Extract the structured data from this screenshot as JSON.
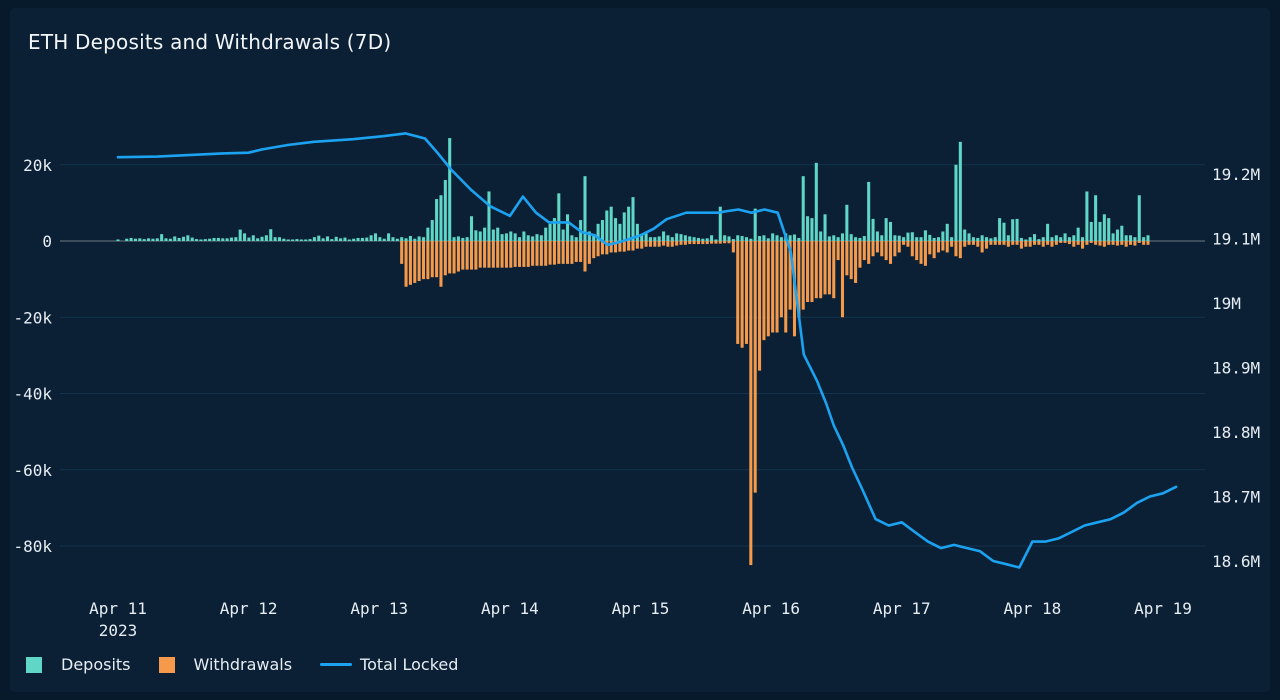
{
  "chart_data": {
    "type": "bar",
    "title": "ETH Deposits and Withdrawals (7D)",
    "x_tick_labels": [
      "Apr 11",
      "Apr 12",
      "Apr 13",
      "Apr 14",
      "Apr 15",
      "Apr 16",
      "Apr 17",
      "Apr 18",
      "Apr 19"
    ],
    "x_year_label": "2023",
    "y_left_ticks": [
      20000,
      0,
      -20000,
      -40000,
      -60000,
      -80000
    ],
    "y_left_tick_labels": [
      "20k",
      "0",
      "-20k",
      "-40k",
      "-60k",
      "-80k"
    ],
    "y_right_ticks": [
      19200000,
      19100000,
      19000000,
      18900000,
      18800000,
      18700000,
      18600000
    ],
    "y_right_tick_labels": [
      "19.2M",
      "19.1M",
      "19M",
      "18.9M",
      "18.8M",
      "18.7M",
      "18.6M"
    ],
    "ylim_left": [
      -88000,
      40000
    ],
    "ylim_right": [
      18590000,
      19290000
    ],
    "grid": true,
    "legend_position": "bottom-left",
    "colors": {
      "deposits": "#5fd6c6",
      "withdrawals": "#f49a4a",
      "total_locked": "#1ba3f2",
      "zero_line": "#6e7a86"
    },
    "series": [
      {
        "name": "Deposits",
        "axis": "left",
        "values": [
          400,
          0,
          600,
          800,
          600,
          700,
          500,
          700,
          600,
          700,
          1800,
          700,
          600,
          1200,
          800,
          1100,
          1500,
          900,
          500,
          400,
          500,
          600,
          800,
          800,
          700,
          700,
          900,
          1000,
          3000,
          2000,
          900,
          1500,
          700,
          1100,
          1500,
          3100,
          1000,
          1000,
          600,
          400,
          400,
          500,
          400,
          400,
          500,
          1000,
          1400,
          700,
          1200,
          500,
          1100,
          700,
          900,
          400,
          600,
          800,
          800,
          900,
          1500,
          2000,
          1000,
          600,
          2000,
          1000,
          600,
          1000,
          700,
          1300,
          600,
          1200,
          1000,
          3500,
          5500,
          11000,
          12000,
          16000,
          27000,
          1000,
          1200,
          800,
          1000,
          6500,
          2800,
          2500,
          3500,
          13000,
          3000,
          3500,
          1800,
          2000,
          2500,
          2000,
          1000,
          2500,
          1500,
          1200,
          1800,
          1500,
          3500,
          4500,
          6000,
          12500,
          3000,
          7000,
          1500,
          1000,
          5500,
          17000,
          2500,
          1500,
          4500,
          5500,
          8000,
          9000,
          6000,
          4500,
          7500,
          9000,
          11500,
          4500,
          1500,
          2000,
          1000,
          1000,
          1200,
          2500,
          1500,
          1000,
          2000,
          1800,
          1500,
          1200,
          1000,
          800,
          600,
          700,
          1500,
          400,
          9000,
          1500,
          1200,
          500,
          1500,
          1300,
          1000,
          600,
          8500,
          1300,
          1500,
          700,
          2000,
          1500,
          1000,
          2000,
          1500,
          1700,
          800,
          17000,
          6500,
          6000,
          20500,
          2500,
          7000,
          1200,
          1500,
          1000,
          2000,
          9500,
          1800,
          1000,
          800,
          1300,
          15500,
          5800,
          2500,
          1500,
          6000,
          5000,
          1500,
          1400,
          1000,
          2200,
          2300,
          1000,
          1000,
          2800,
          1600,
          800,
          1000,
          2500,
          4500,
          1000,
          20000,
          26000,
          3000,
          2000,
          1000,
          800,
          1500,
          1000,
          700,
          1000,
          6000,
          4800,
          1500,
          5700,
          5800,
          800,
          400,
          1000,
          1800,
          500,
          1000,
          4500,
          1000,
          1500,
          1000,
          2000,
          1000,
          1500,
          3500,
          1000,
          13000,
          5000,
          12000,
          5000,
          7000,
          6000,
          2000,
          3000,
          4000,
          1500,
          1500,
          1000,
          12000,
          1000,
          1500
        ],
        "withdrawals": [
          0,
          0,
          0,
          0,
          0,
          0,
          0,
          0,
          0,
          0,
          0,
          0,
          0,
          0,
          0,
          0,
          0,
          0,
          0,
          0,
          0,
          0,
          0,
          0,
          0,
          0,
          0,
          0,
          0,
          0,
          0,
          0,
          0,
          0,
          0,
          0,
          0,
          0,
          0,
          0,
          0,
          0,
          0,
          0,
          0,
          0,
          0,
          0,
          0,
          0,
          0,
          0,
          0,
          0,
          0,
          0,
          0,
          0,
          0,
          0,
          0,
          0,
          0,
          0,
          0,
          6000,
          12000,
          11500,
          11000,
          10500,
          10000,
          10000,
          9500,
          9500,
          12000,
          9000,
          8500,
          8500,
          8000,
          7500,
          7500,
          7500,
          7500,
          7000,
          7000,
          7000,
          7000,
          7000,
          7000,
          7000,
          7000,
          6800,
          6800,
          6800,
          6800,
          6500,
          6500,
          6500,
          6500,
          6200,
          6200,
          6000,
          6000,
          6000,
          6000,
          5500,
          5500,
          8000,
          6000,
          4500,
          4000,
          3500,
          3500,
          3000,
          3000,
          2800,
          2800,
          2500,
          2500,
          2000,
          2000,
          1500,
          1500,
          1500,
          1500,
          1200,
          1500,
          1500,
          1200,
          1000,
          1000,
          800,
          800,
          800,
          800,
          800,
          700,
          700,
          700,
          600,
          600,
          3000,
          27000,
          28000,
          27000,
          85000,
          66000,
          34000,
          26000,
          25000,
          24000,
          24000,
          20000,
          24000,
          18000,
          25000,
          20000,
          18000,
          16000,
          16000,
          15000,
          15000,
          14000,
          14000,
          15000,
          5000,
          20000,
          9000,
          10000,
          11000,
          7000,
          5000,
          6000,
          4000,
          3000,
          4000,
          5000,
          6000,
          4000,
          3000,
          1000,
          1500,
          4000,
          5000,
          6000,
          6500,
          3500,
          4500,
          3000,
          2500,
          3000,
          1500,
          4000,
          4500,
          1500,
          1000,
          1000,
          1500,
          3000,
          2000,
          1000,
          1000,
          1000,
          1000,
          1500,
          1000,
          1000,
          2000,
          1500,
          1500,
          1000,
          1000,
          1500,
          1000,
          1500,
          1000,
          500,
          500,
          800,
          1500,
          1000,
          2000,
          1000,
          500,
          1000,
          1200,
          1500,
          1000,
          1000,
          1200,
          1000,
          1500,
          1000,
          1200,
          500,
          1000,
          1000,
          1000,
          500,
          1000
        ]
      },
      {
        "name": "Withdrawals",
        "axis": "left",
        "values_ref": "series.0.withdrawals"
      },
      {
        "name": "Total Locked",
        "axis": "right",
        "type": "line",
        "x_days": [
          0,
          0.3,
          0.6,
          0.8,
          1.0,
          1.1,
          1.3,
          1.5,
          1.8,
          2.0,
          2.2,
          2.35,
          2.45,
          2.55,
          2.7,
          2.85,
          3.0,
          3.1,
          3.2,
          3.3,
          3.45,
          3.55,
          3.65,
          3.75,
          3.85,
          4.0,
          4.1,
          4.2,
          4.35,
          4.5,
          4.6,
          4.65,
          4.75,
          4.85,
          4.95,
          5.05,
          5.15,
          5.25,
          5.35,
          5.42,
          5.48,
          5.55,
          5.62,
          5.7,
          5.8,
          5.9,
          6.0,
          6.1,
          6.2,
          6.3,
          6.4,
          6.5,
          6.6,
          6.7,
          6.8,
          6.9,
          7.0,
          7.1,
          7.2,
          7.3,
          7.4,
          7.5,
          7.6,
          7.7,
          7.8,
          7.9,
          8.0,
          8.1
        ],
        "values": [
          19226000,
          19227000,
          19230000,
          19232000,
          19233000,
          19238000,
          19245000,
          19250000,
          19254000,
          19258000,
          19263000,
          19255000,
          19232000,
          19207000,
          19176000,
          19150000,
          19135000,
          19165000,
          19140000,
          19125000,
          19125000,
          19110000,
          19105000,
          19090000,
          19095000,
          19105000,
          19115000,
          19130000,
          19140000,
          19140000,
          19140000,
          19142000,
          19145000,
          19140000,
          19145000,
          19140000,
          19080000,
          18920000,
          18880000,
          18845000,
          18810000,
          18780000,
          18745000,
          18710000,
          18665000,
          18655000,
          18660000,
          18645000,
          18630000,
          18620000,
          18625000,
          18620000,
          18615000,
          18600000,
          18595000,
          18590000,
          18630000,
          18630000,
          18635000,
          18645000,
          18655000,
          18660000,
          18665000,
          18675000,
          18690000,
          18700000,
          18705000,
          18715000
        ]
      }
    ]
  },
  "legend": {
    "deposits": "Deposits",
    "withdrawals": "Withdrawals",
    "total_locked": "Total Locked"
  }
}
